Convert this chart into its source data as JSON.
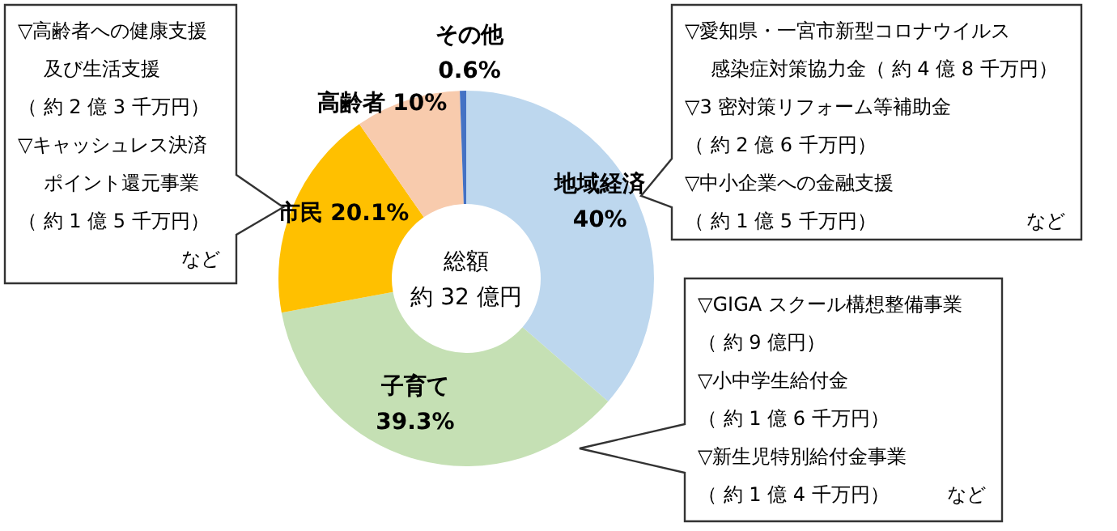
{
  "chart_data": {
    "type": "donut",
    "categories": [
      "地域経済",
      "子育て",
      "市民",
      "高齢者",
      "その他"
    ],
    "values": [
      40,
      39.3,
      20.1,
      10,
      0.6
    ],
    "value_labels": [
      "40%",
      "39.3%",
      "20.1%",
      "10%",
      "0.6%"
    ],
    "colors": [
      "#bdd7ee",
      "#c5e0b4",
      "#ffc000",
      "#f8cbad",
      "#4472c4"
    ],
    "annotations": [
      "総額",
      "約 32 億円",
      "▽高齢者への健康支援",
      "及び生活支援",
      "（ 約 2 億 3 千万円）",
      "▽キャッシュレス決済",
      "ポイント還元事業",
      "（ 約 1 億 5 千万円）",
      "など",
      "▽愛知県・一宮市新型コロナウイルス",
      "感染症対策協力金（ 約 4 億 8 千万円）",
      "▽3 密対策リフォーム等補助金",
      "（ 約 2 億 6 千万円）",
      "▽中小企業への金融支援",
      "（ 約 1 億 5 千万円）",
      "など",
      "▽GIGA スクール構想整備事業",
      "（ 約 9 億円）",
      "▽小中学生給付金",
      "（ 約 1 億 6 千万円）",
      "▽新生児特別給付金事業",
      "（ 約 1 億 4 千万円）",
      "など"
    ]
  }
}
